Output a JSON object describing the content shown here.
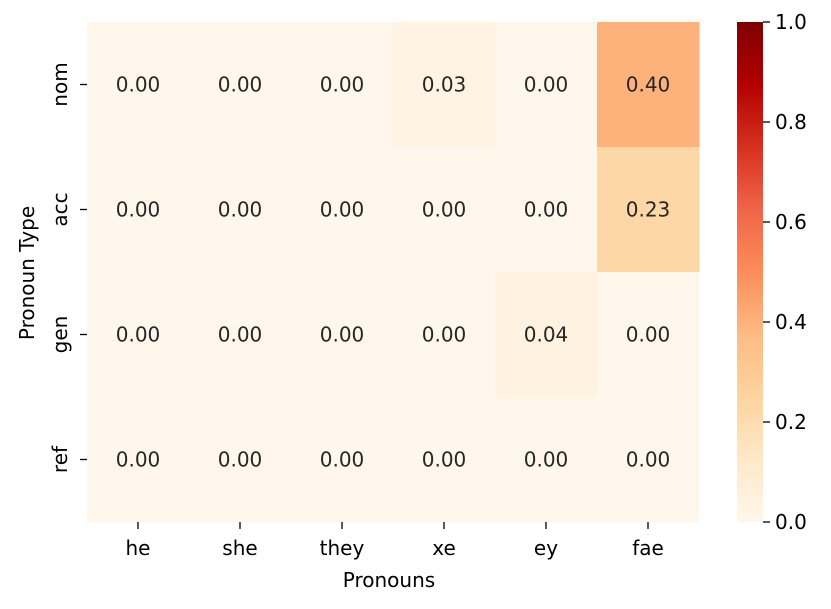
{
  "chart_data": {
    "type": "heatmap",
    "xlabel": "Pronouns",
    "ylabel": "Pronoun Type",
    "x_categories": [
      "he",
      "she",
      "they",
      "xe",
      "ey",
      "fae"
    ],
    "y_categories": [
      "nom",
      "acc",
      "gen",
      "ref"
    ],
    "values": [
      [
        0.0,
        0.0,
        0.0,
        0.03,
        0.0,
        0.4
      ],
      [
        0.0,
        0.0,
        0.0,
        0.0,
        0.0,
        0.23
      ],
      [
        0.0,
        0.0,
        0.0,
        0.0,
        0.04,
        0.0
      ],
      [
        0.0,
        0.0,
        0.0,
        0.0,
        0.0,
        0.0
      ]
    ],
    "value_format": "0.00",
    "colormap": "OrRd",
    "colormap_stops": [
      "#fff7ec",
      "#fee8c8",
      "#fdd49e",
      "#fdbb84",
      "#fc8d59",
      "#ef6548",
      "#d7301f",
      "#b30000",
      "#7f0000"
    ],
    "colorbar": {
      "range": [
        0.0,
        1.0
      ],
      "ticks": [
        0.0,
        0.2,
        0.4,
        0.6,
        0.8,
        1.0
      ],
      "tick_labels": [
        "0.0",
        "0.2",
        "0.4",
        "0.6",
        "0.8",
        "1.0"
      ]
    },
    "annotation_color": "#262626"
  }
}
